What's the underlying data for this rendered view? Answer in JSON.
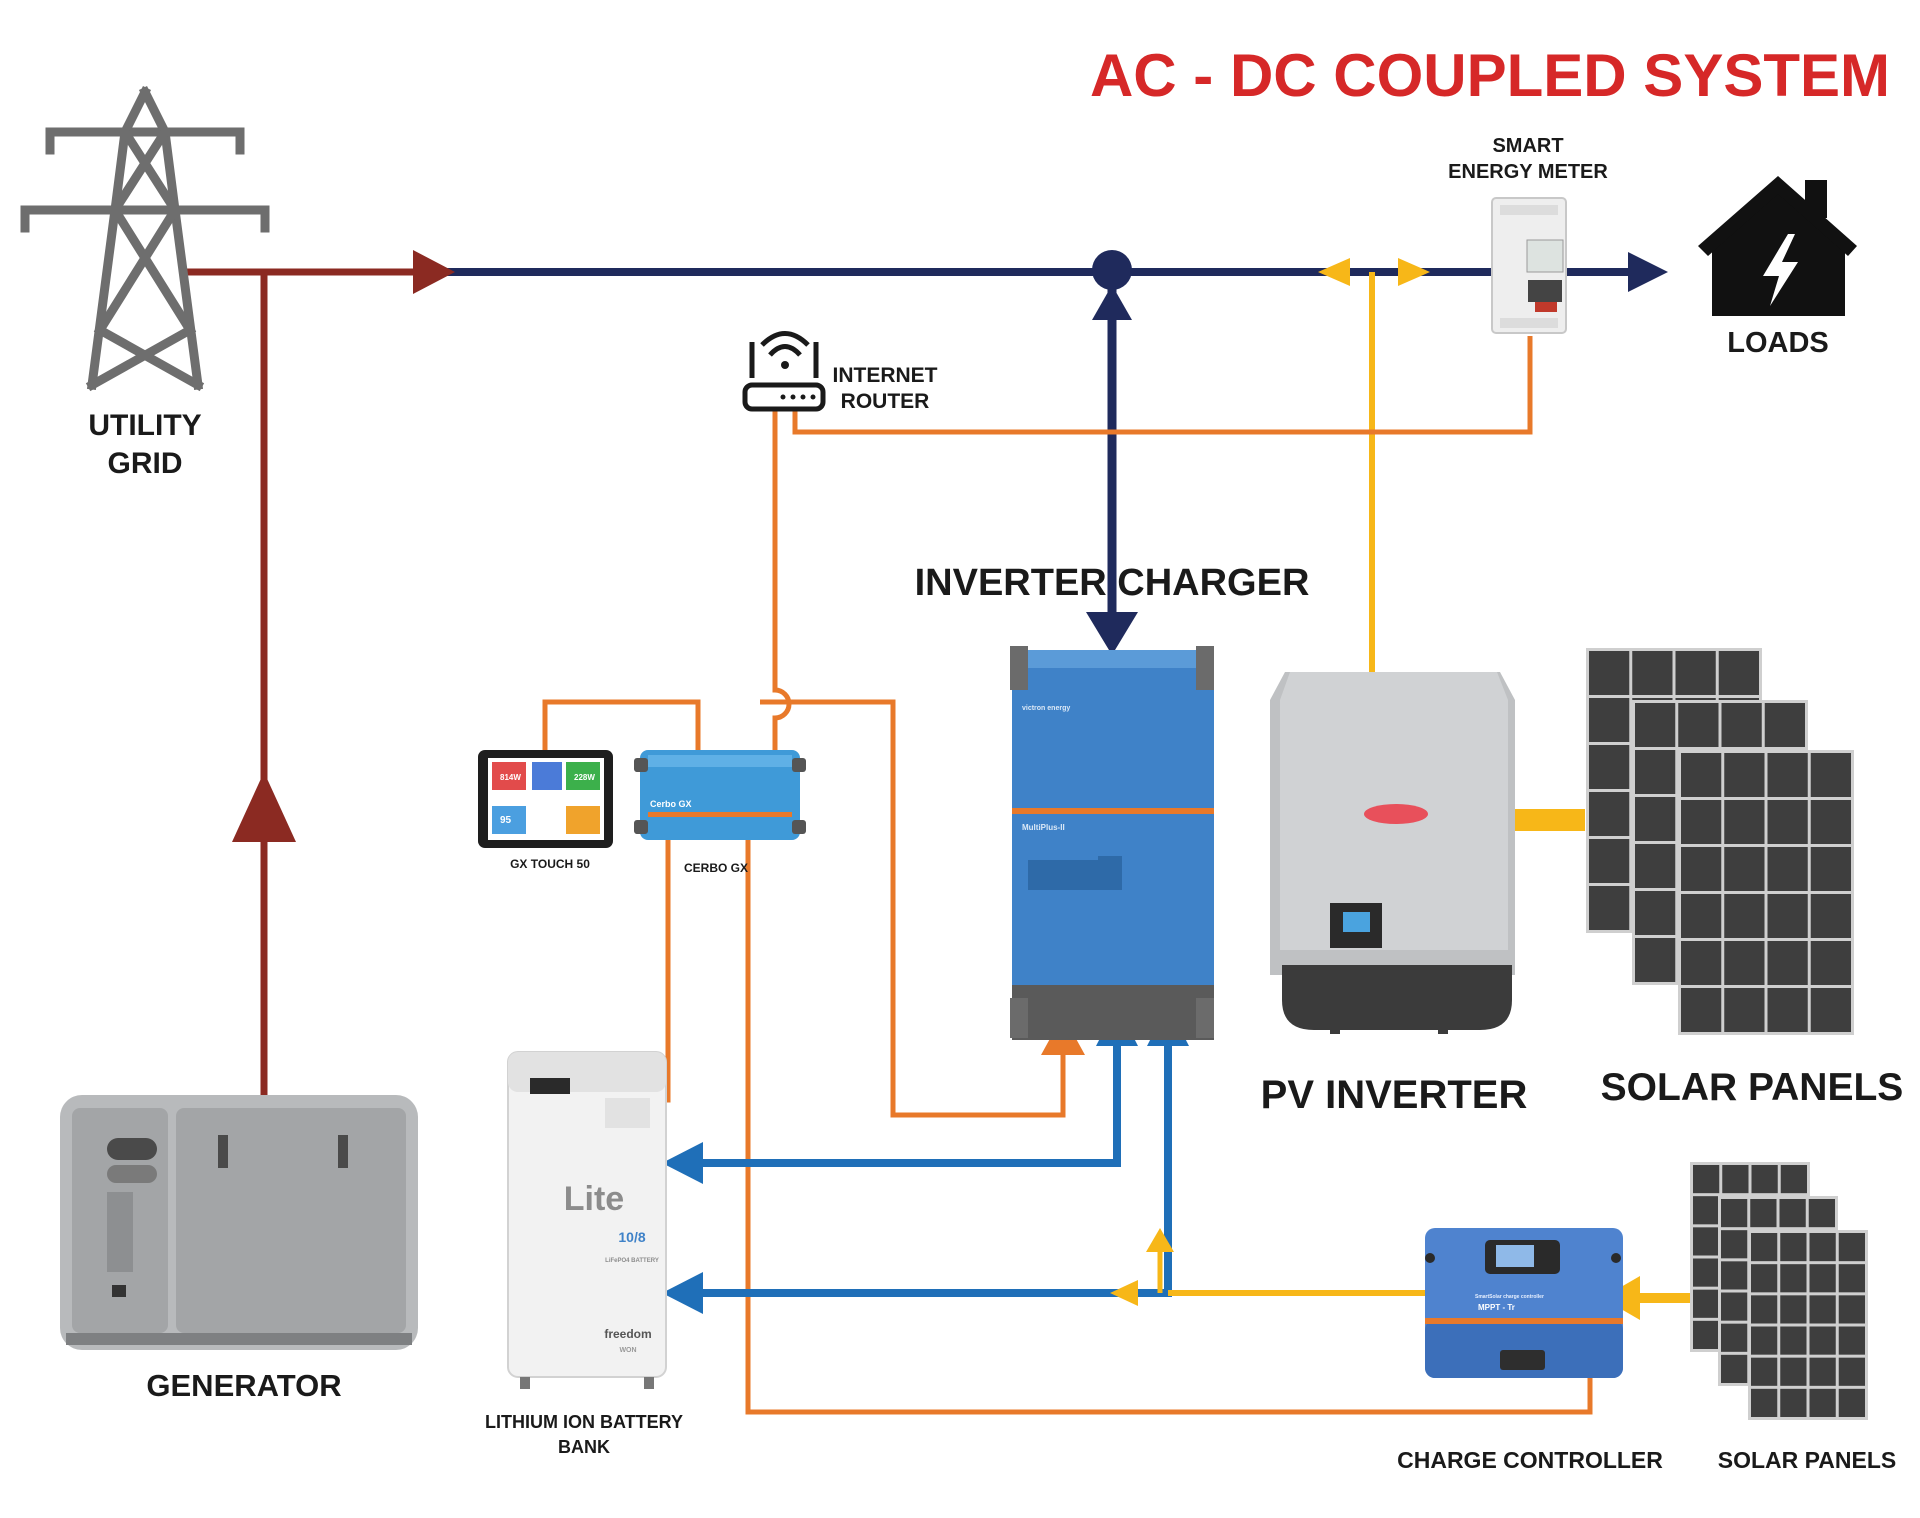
{
  "title": "AC - DC COUPLED SYSTEM",
  "labels": {
    "utility_grid_1": "UTILITY",
    "utility_grid_2": "GRID",
    "generator": "GENERATOR",
    "internet_router_1": "INTERNET",
    "internet_router_2": "ROUTER",
    "smart_meter_1": "SMART",
    "smart_meter_2": "ENERGY METER",
    "loads": "LOADS",
    "inverter_charger": "INVERTER CHARGER",
    "pv_inverter": "PV INVERTER",
    "solar_panels_large": "SOLAR PANELS",
    "gx_touch": "GX TOUCH 50",
    "cerbo_gx": "CERBO GX",
    "battery_1": "LITHIUM ION BATTERY",
    "battery_2": "BANK",
    "charge_controller": "CHARGE CONTROLLER",
    "solar_panels_small": "SOLAR PANELS"
  },
  "device_text": {
    "battery_brand": "Lite",
    "battery_model": "10/8",
    "battery_chem": "LiFePO4 BATTERY",
    "battery_maker": "freedom",
    "battery_maker2": "WON",
    "multiplus": "MultiPlus-II",
    "victron": "victron energy",
    "cerbo": "Cerbo GX",
    "gx_val_1": "814W",
    "gx_val_2": "228W",
    "gx_val_3": "95",
    "mppt": "MPPT - Tr",
    "smartsolar": "SmartSolar charge controller"
  },
  "colors": {
    "title_red": "#d62828",
    "ac_navy": "#1f2a5c",
    "grid_brown": "#8b2a22",
    "comm_orange": "#e8792a",
    "pv_yellow": "#f7b718",
    "dc_blue": "#1f6fb8",
    "victron_blue": "#3f82c8"
  }
}
